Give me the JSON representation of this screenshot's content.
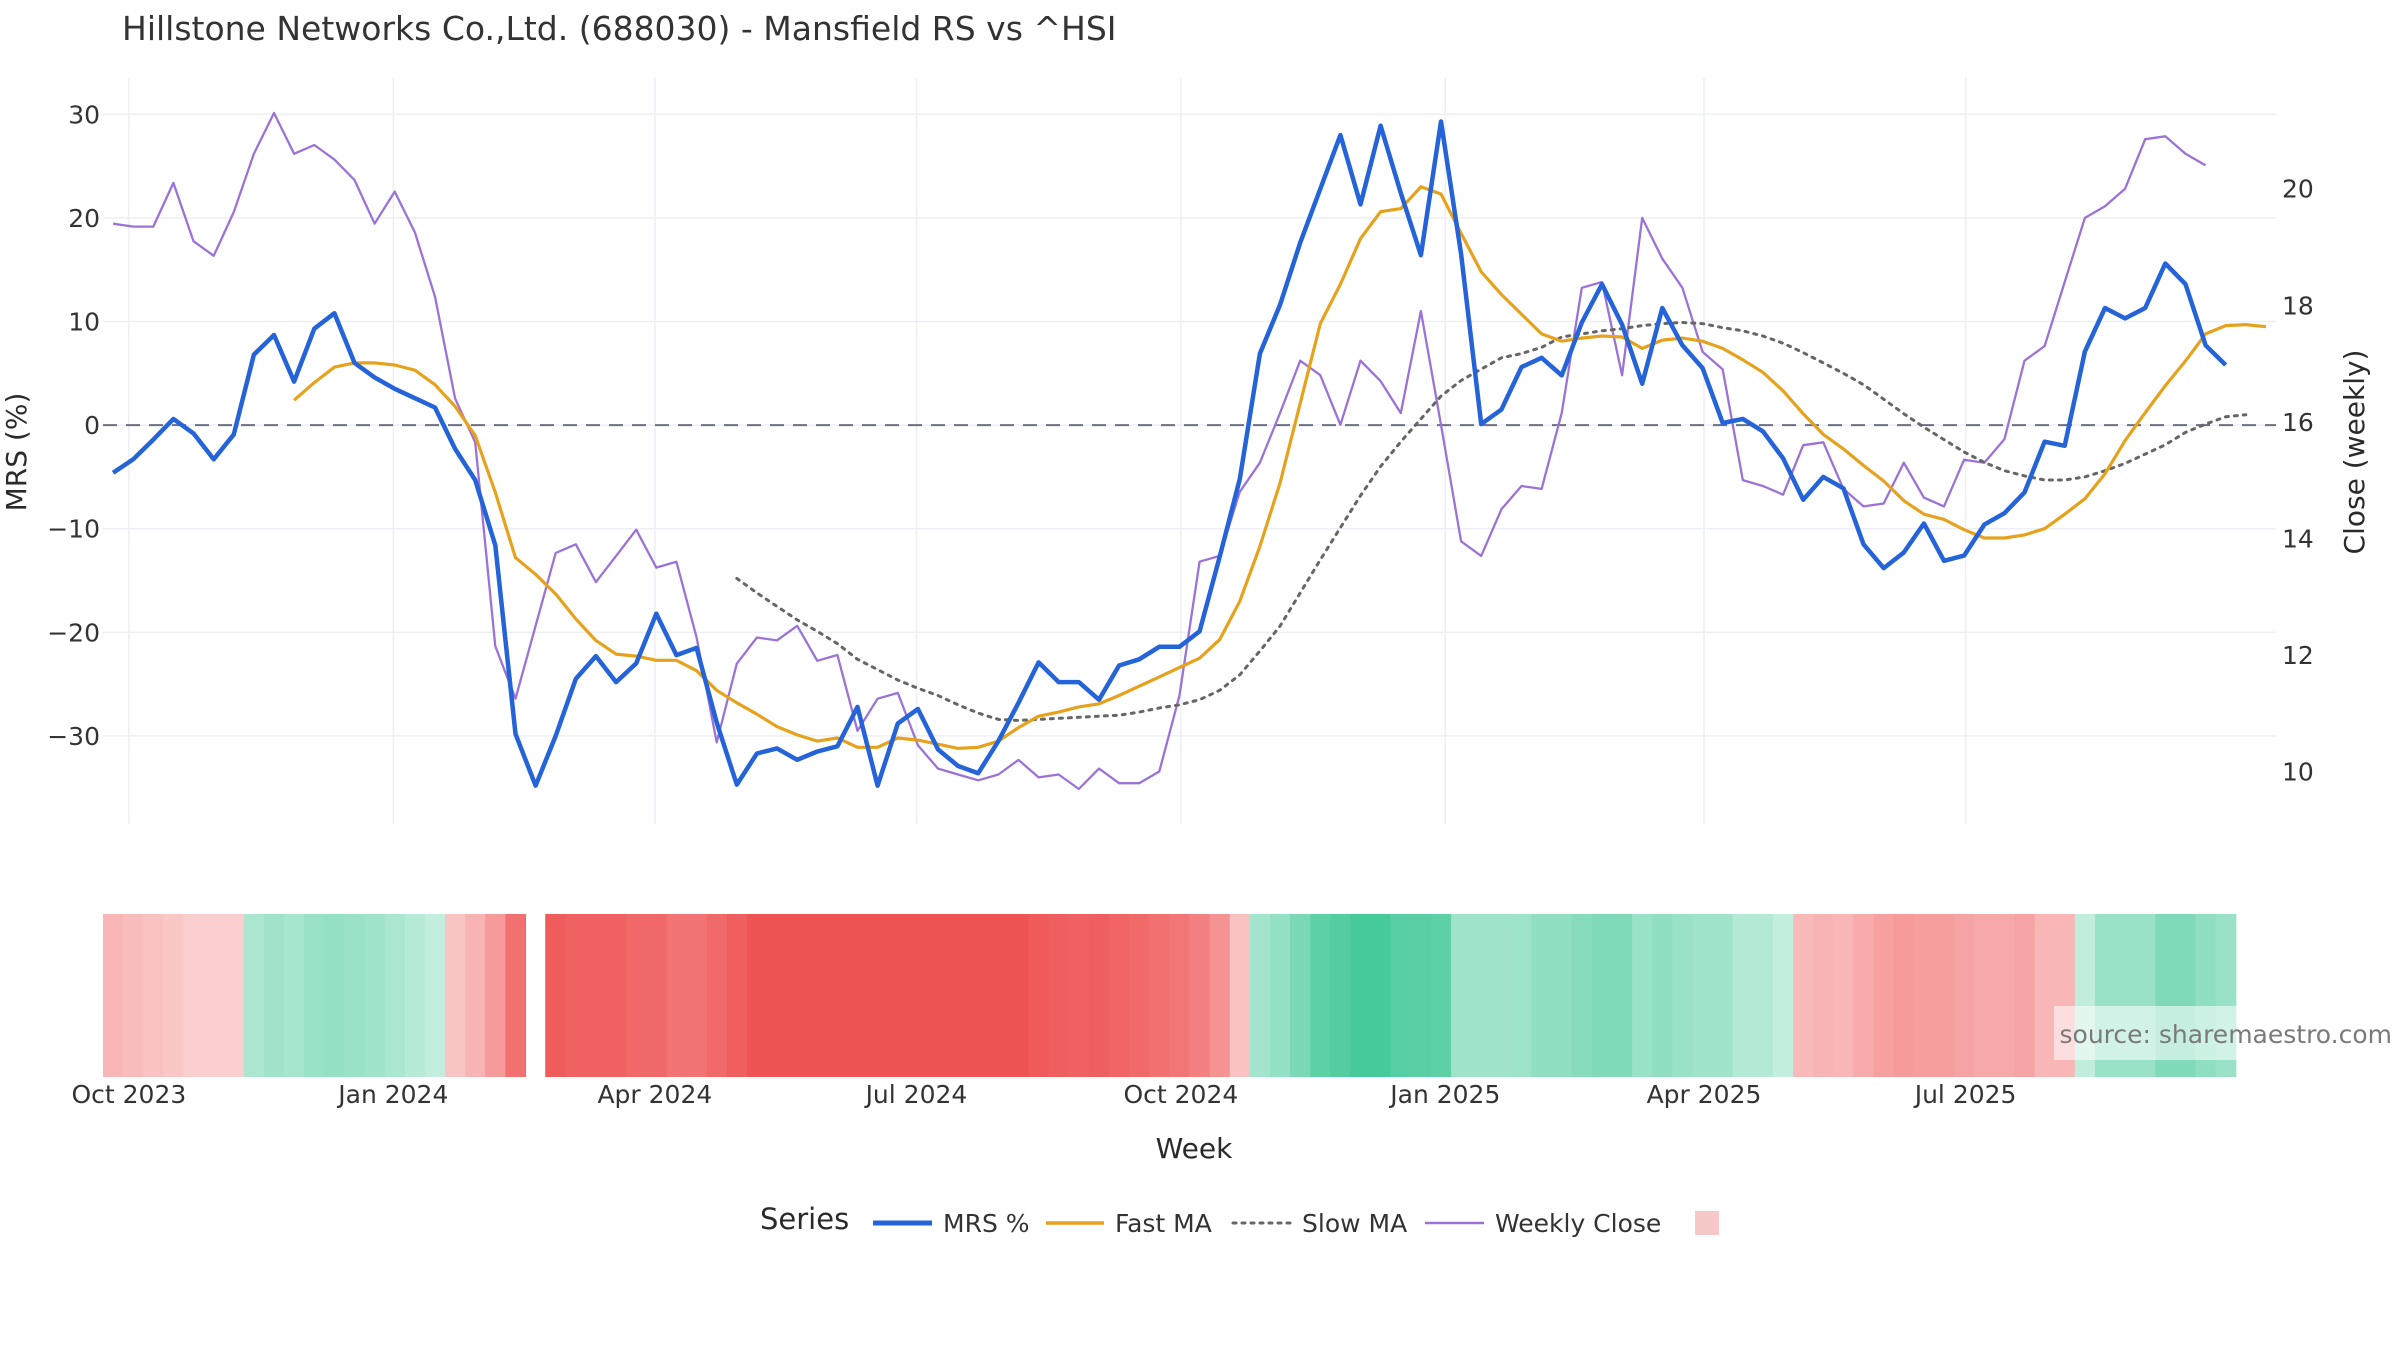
{
  "title": "Hillstone Networks Co.,Ltd. (688030) - Mansfield RS vs ^HSI",
  "source": "source: sharemaestro.com",
  "colors": {
    "mrs": "#2563d9",
    "fast_ma": "#e6a21d",
    "slow_ma": "#666666",
    "weekly_close": "#9b73d8",
    "zero_line": "#6b6f80",
    "grid": "#eceff4",
    "heat_negative": "#ef5454",
    "heat_positive": "#3ec795"
  },
  "chart_data": {
    "type": "line",
    "title": "Hillstone Networks Co.,Ltd. (688030) - Mansfield RS vs ^HSI",
    "xlabel": "Week",
    "ylabel": "MRS (%)",
    "y2label": "Close (weekly)",
    "ylim": [
      -38.5,
      33.5
    ],
    "y2lim": [
      9.1,
      21.9
    ],
    "yticks": [
      30,
      20,
      10,
      0,
      -10,
      -20,
      -30
    ],
    "yticklabels": [
      "30",
      "20",
      "10",
      "0",
      "−10",
      "−20",
      "−30"
    ],
    "y2ticks": [
      20,
      18,
      16,
      14,
      12,
      10
    ],
    "x_start": "2023-09-22",
    "weeks": 108,
    "xticks": [
      {
        "label": "Oct 2023",
        "date": "2023-10-01"
      },
      {
        "label": "Jan 2024",
        "date": "2024-01-01"
      },
      {
        "label": "Apr 2024",
        "date": "2024-04-01"
      },
      {
        "label": "Jul 2024",
        "date": "2024-07-01"
      },
      {
        "label": "Oct 2024",
        "date": "2024-10-01"
      },
      {
        "label": "Jan 2025",
        "date": "2025-01-01"
      },
      {
        "label": "Apr 2025",
        "date": "2025-04-01"
      },
      {
        "label": "Jul 2025",
        "date": "2025-07-01"
      }
    ],
    "legend_title": "Series",
    "legend_position": "bottom",
    "grid": true,
    "zero_line": 0,
    "series": [
      {
        "name": "MRS %",
        "axis": "left",
        "style": "solid",
        "values": [
          -4.6,
          -3.3,
          -1.4,
          0.6,
          -0.8,
          -3.3,
          -0.9,
          6.8,
          8.7,
          4.2,
          9.3,
          10.8,
          6.0,
          4.6,
          3.5,
          2.6,
          1.7,
          -2.3,
          -5.3,
          -11.6,
          -29.8,
          -34.8,
          -30.0,
          -24.5,
          -22.3,
          -24.8,
          -23.0,
          -18.2,
          -22.2,
          -21.5,
          -28.7,
          -34.7,
          -31.7,
          -31.2,
          -32.3,
          -31.5,
          -31.0,
          -27.2,
          -34.8,
          -28.8,
          -27.4,
          -31.3,
          -32.9,
          -33.6,
          -30.5,
          -26.8,
          -22.9,
          -24.8,
          -24.8,
          -26.5,
          -23.2,
          -22.6,
          -21.4,
          -21.4,
          -19.9,
          -12.7,
          -5.2,
          6.9,
          11.6,
          17.6,
          22.8,
          28.0,
          21.3,
          28.9,
          22.4,
          16.4,
          29.3,
          16.5,
          0.1,
          1.5,
          5.6,
          6.5,
          4.8,
          9.9,
          13.6,
          9.7,
          4.0,
          11.3,
          7.7,
          5.5,
          0.2,
          0.6,
          -0.6,
          -3.2,
          -7.2,
          -5.0,
          -6.1,
          -11.5,
          -13.8,
          -12.3,
          -9.5,
          -13.1,
          -12.6,
          -9.6,
          -8.5,
          -6.5,
          -1.6,
          -2.0,
          7.1,
          11.3,
          10.3,
          11.3,
          15.6,
          13.6,
          7.7,
          5.8
        ]
      },
      {
        "name": "Fast MA",
        "axis": "left",
        "style": "solid",
        "start_index": 9,
        "values": [
          2.4,
          4.1,
          5.6,
          6.0,
          6.0,
          5.8,
          5.3,
          3.9,
          1.8,
          -1.0,
          -6.5,
          -12.8,
          -14.4,
          -16.3,
          -18.7,
          -20.8,
          -22.1,
          -22.3,
          -22.7,
          -22.7,
          -23.7,
          -25.6,
          -26.8,
          -27.9,
          -29.1,
          -29.9,
          -30.5,
          -30.2,
          -31.1,
          -31.1,
          -30.2,
          -30.4,
          -30.8,
          -31.2,
          -31.1,
          -30.5,
          -29.2,
          -28.1,
          -27.7,
          -27.2,
          -26.9,
          -26.1,
          -25.2,
          -24.3,
          -23.4,
          -22.5,
          -20.7,
          -17.0,
          -11.7,
          -5.6,
          2.1,
          9.8,
          13.6,
          18.0,
          20.6,
          20.9,
          23.0,
          22.3,
          18.5,
          14.8,
          12.6,
          10.7,
          8.8,
          8.1,
          8.4,
          8.6,
          8.5,
          7.4,
          8.2,
          8.4,
          8.1,
          7.4,
          6.3,
          5.1,
          3.3,
          1.1,
          -0.9,
          -2.3,
          -3.9,
          -5.4,
          -7.3,
          -8.6,
          -9.1,
          -10.1,
          -10.9,
          -10.9,
          -10.6,
          -10.0,
          -8.6,
          -7.1,
          -4.7,
          -1.5,
          1.2,
          3.8,
          6.2,
          8.8,
          9.6,
          9.7,
          9.5
        ]
      },
      {
        "name": "Slow MA",
        "axis": "left",
        "style": "dotted",
        "start_index": 31,
        "values": [
          -14.8,
          -16.2,
          -17.5,
          -18.8,
          -19.9,
          -21.1,
          -22.6,
          -23.6,
          -24.6,
          -25.4,
          -26.1,
          -27.0,
          -27.8,
          -28.4,
          -28.5,
          -28.4,
          -28.3,
          -28.2,
          -28.1,
          -28.0,
          -27.7,
          -27.3,
          -27.0,
          -26.5,
          -25.6,
          -24.1,
          -21.8,
          -19.4,
          -16.2,
          -13.0,
          -9.9,
          -6.8,
          -4.0,
          -1.6,
          0.6,
          2.8,
          4.3,
          5.4,
          6.5,
          6.9,
          7.5,
          8.5,
          8.8,
          9.1,
          9.3,
          9.6,
          9.8,
          9.9,
          9.8,
          9.4,
          9.1,
          8.6,
          7.9,
          7.0,
          6.0,
          5.0,
          3.9,
          2.5,
          1.1,
          -0.2,
          -1.4,
          -2.6,
          -3.6,
          -4.4,
          -4.9,
          -5.3,
          -5.3,
          -5.0,
          -4.4,
          -3.7,
          -2.8,
          -1.9,
          -0.7,
          0.1,
          0.8,
          1.0
        ]
      },
      {
        "name": "Weekly Close",
        "axis": "right",
        "style": "solid",
        "values": [
          19.4,
          19.35,
          19.35,
          20.1,
          19.1,
          18.85,
          19.6,
          20.6,
          21.3,
          20.6,
          20.75,
          20.5,
          20.15,
          19.4,
          19.95,
          19.25,
          18.15,
          16.4,
          15.65,
          12.15,
          11.25,
          12.5,
          13.75,
          13.9,
          13.25,
          13.7,
          14.15,
          13.5,
          13.6,
          12.3,
          10.5,
          11.85,
          12.3,
          12.25,
          12.5,
          11.9,
          12.0,
          10.7,
          11.25,
          11.35,
          10.45,
          10.05,
          9.95,
          9.85,
          9.95,
          10.2,
          9.9,
          9.95,
          9.7,
          10.05,
          9.8,
          9.8,
          10.0,
          11.3,
          13.6,
          13.7,
          14.8,
          15.3,
          16.15,
          17.05,
          16.8,
          15.95,
          17.05,
          16.7,
          16.15,
          17.9,
          15.95,
          13.95,
          13.7,
          14.5,
          14.9,
          14.85,
          16.15,
          18.3,
          18.4,
          16.8,
          19.5,
          18.8,
          18.3,
          17.2,
          16.9,
          15.0,
          14.9,
          14.75,
          15.6,
          15.65,
          14.85,
          14.55,
          14.6,
          15.3,
          14.7,
          14.55,
          15.35,
          15.3,
          15.7,
          17.05,
          17.3,
          18.4,
          19.5,
          19.7,
          20.0,
          20.85,
          20.9,
          20.6,
          20.4
        ]
      }
    ],
    "heatmap_strip": {
      "type": "heatmap",
      "gaps": [
        21
      ],
      "values": [
        -1.5,
        -1.3,
        -1.1,
        -0.9,
        -0.6,
        -0.6,
        -0.6,
        1.6,
        1.9,
        1.7,
        2.1,
        2.3,
        2.1,
        1.9,
        1.6,
        1.2,
        0.8,
        -1.0,
        -1.6,
        -2.5,
        -4.0,
        -4.5,
        -4.7,
        -4.5,
        -4.5,
        -4.5,
        -4.3,
        -4.3,
        -3.9,
        -3.9,
        -4.2,
        -4.6,
        -5.0,
        -5.0,
        -5.0,
        -5.0,
        -5.0,
        -5.0,
        -5.0,
        -5.0,
        -5.0,
        -5.0,
        -5.0,
        -5.0,
        -5.0,
        -5.0,
        -4.8,
        -4.6,
        -4.5,
        -4.6,
        -4.4,
        -4.2,
        -4.0,
        -3.8,
        -3.4,
        -2.8,
        -1.1,
        1.8,
        2.3,
        3.1,
        4.0,
        4.3,
        4.7,
        4.7,
        4.2,
        4.1,
        4.0,
        1.9,
        1.9,
        1.9,
        2.0,
        2.4,
        2.4,
        2.7,
        2.9,
        2.9,
        2.1,
        2.4,
        2.1,
        1.9,
        1.9,
        1.3,
        1.3,
        0.8,
        -1.4,
        -1.6,
        -1.5,
        -1.9,
        -2.3,
        -2.5,
        -2.4,
        -2.4,
        -2.2,
        -2.0,
        -2.0,
        -2.2,
        -1.5,
        -1.5,
        0.9,
        2.1,
        2.1,
        2.1,
        2.9,
        2.9,
        2.4,
        2.1
      ]
    }
  }
}
